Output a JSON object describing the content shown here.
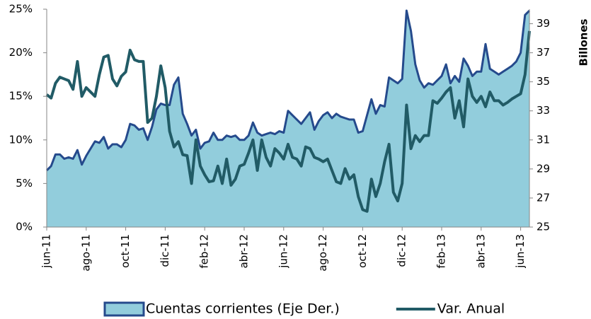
{
  "chart_data": {
    "type": "line",
    "categories": [
      "jun-11",
      null,
      null,
      null,
      null,
      null,
      null,
      null,
      null,
      "ago-11",
      null,
      null,
      null,
      null,
      null,
      null,
      null,
      null,
      "oct-11",
      null,
      null,
      null,
      null,
      null,
      null,
      null,
      null,
      "dic-11",
      null,
      null,
      null,
      null,
      null,
      null,
      null,
      null,
      "feb-12",
      null,
      null,
      null,
      null,
      null,
      null,
      null,
      null,
      "abr-12",
      null,
      null,
      null,
      null,
      null,
      null,
      null,
      null,
      "jun-12",
      null,
      null,
      null,
      null,
      null,
      null,
      null,
      null,
      "ago-12",
      null,
      null,
      null,
      null,
      null,
      null,
      null,
      null,
      "oct-12",
      null,
      null,
      null,
      null,
      null,
      null,
      null,
      null,
      "dic-12",
      null,
      null,
      null,
      null,
      null,
      null,
      null,
      null,
      "feb-13",
      null,
      null,
      null,
      null,
      null,
      null,
      null,
      null,
      "abr-13",
      null,
      null,
      null,
      null,
      null,
      null,
      null,
      null,
      "jun-13",
      null,
      null
    ],
    "series": [
      {
        "name": "Cuentas corrientes (Eje Der.)",
        "kind": "area",
        "axis": "y2",
        "color": "#92cddc",
        "edge_color": "#254a8c",
        "values": [
          28.9,
          29.2,
          30.0,
          30.0,
          29.7,
          29.8,
          29.7,
          30.3,
          29.3,
          29.9,
          30.4,
          30.9,
          30.8,
          31.2,
          30.4,
          30.7,
          30.7,
          30.5,
          31.0,
          32.1,
          32.0,
          31.7,
          31.8,
          31.0,
          31.9,
          33.1,
          33.5,
          33.4,
          33.4,
          34.8,
          35.3,
          32.8,
          32.1,
          31.3,
          31.7,
          30.4,
          30.8,
          30.9,
          31.5,
          31.0,
          31.0,
          31.3,
          31.2,
          31.3,
          31.0,
          31.0,
          31.3,
          32.2,
          31.5,
          31.3,
          31.4,
          31.5,
          31.4,
          31.6,
          31.5,
          33.0,
          32.7,
          32.4,
          32.1,
          32.5,
          32.9,
          31.7,
          32.3,
          32.7,
          32.9,
          32.5,
          32.8,
          32.6,
          32.5,
          32.4,
          32.4,
          31.5,
          31.6,
          32.7,
          33.8,
          32.8,
          33.4,
          33.3,
          35.3,
          35.1,
          34.9,
          35.2,
          39.9,
          38.5,
          36.2,
          35.1,
          34.6,
          34.9,
          34.8,
          35.1,
          35.4,
          36.2,
          34.9,
          35.4,
          35.0,
          36.6,
          36.1,
          35.4,
          35.7,
          35.7,
          37.6,
          35.9,
          35.7,
          35.5,
          35.7,
          35.9,
          36.1,
          36.4,
          37.0,
          39.6,
          39.9
        ]
      },
      {
        "name": "Var. Anual",
        "kind": "line",
        "axis": "y",
        "color": "#215b66",
        "values": [
          15.2,
          14.8,
          16.5,
          17.2,
          17.0,
          16.8,
          15.8,
          19.0,
          15.0,
          16.0,
          15.5,
          15.0,
          17.5,
          19.5,
          19.7,
          17.0,
          16.2,
          17.3,
          17.8,
          20.3,
          19.2,
          19.0,
          19.0,
          12.0,
          12.5,
          15.0,
          18.5,
          16.0,
          11.0,
          9.2,
          9.8,
          8.3,
          8.2,
          5.0,
          10.0,
          7.0,
          6.0,
          5.2,
          5.3,
          7.0,
          5.0,
          7.8,
          4.8,
          5.5,
          7.0,
          7.2,
          8.5,
          10.0,
          6.5,
          10.0,
          8.0,
          7.0,
          9.0,
          8.5,
          7.8,
          9.5,
          8.0,
          7.8,
          7.0,
          9.2,
          9.0,
          8.0,
          7.8,
          7.5,
          7.8,
          6.5,
          5.2,
          5.0,
          6.7,
          5.5,
          6.0,
          3.5,
          2.0,
          1.8,
          5.5,
          3.5,
          5.0,
          7.5,
          9.5,
          4.0,
          3.0,
          5.0,
          14.0,
          9.0,
          10.5,
          9.8,
          10.5,
          10.5,
          14.5,
          14.2,
          14.8,
          15.5,
          16.0,
          12.5,
          14.5,
          11.5,
          17.0,
          15.0,
          14.3,
          15.0,
          13.8,
          15.5,
          14.5,
          14.5,
          14.0,
          14.3,
          14.7,
          15.0,
          15.3,
          17.5,
          22.5
        ]
      }
    ],
    "ylim": [
      0,
      25
    ],
    "yticks": [
      {
        "value": 0,
        "label": "0%"
      },
      {
        "value": 5,
        "label": "5%"
      },
      {
        "value": 10,
        "label": "10%"
      },
      {
        "value": 15,
        "label": "15%"
      },
      {
        "value": 20,
        "label": "20%"
      },
      {
        "value": 25,
        "label": "25%"
      }
    ],
    "y2lim": [
      25,
      40
    ],
    "y2ticks": [
      25,
      27,
      29,
      31,
      33,
      35,
      37,
      39
    ],
    "y2label": "Billones",
    "grid": false,
    "legend": "bottom"
  }
}
